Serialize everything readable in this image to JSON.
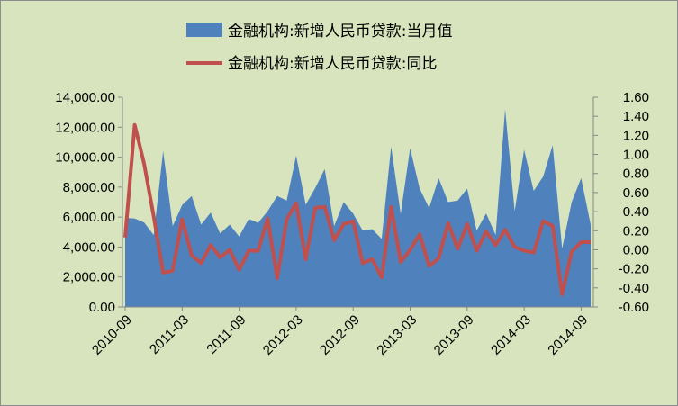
{
  "chart_data": {
    "type": "area",
    "x": [
      "2010-09",
      "2010-10",
      "2010-11",
      "2010-12",
      "2011-01",
      "2011-02",
      "2011-03",
      "2011-04",
      "2011-05",
      "2011-06",
      "2011-07",
      "2011-08",
      "2011-09",
      "2011-10",
      "2011-11",
      "2011-12",
      "2012-01",
      "2012-02",
      "2012-03",
      "2012-04",
      "2012-05",
      "2012-06",
      "2012-07",
      "2012-08",
      "2012-09",
      "2012-10",
      "2012-11",
      "2012-12",
      "2013-01",
      "2013-02",
      "2013-03",
      "2013-04",
      "2013-05",
      "2013-06",
      "2013-07",
      "2013-08",
      "2013-09",
      "2013-10",
      "2013-11",
      "2013-12",
      "2014-01",
      "2014-02",
      "2014-03",
      "2014-04",
      "2014-05",
      "2014-06",
      "2014-07",
      "2014-08",
      "2014-09",
      "2014-10"
    ],
    "x_tick_labels": [
      "2010-09",
      "2011-03",
      "2011-09",
      "2012-03",
      "2012-09",
      "2013-03",
      "2013-09",
      "2014-03",
      "2014-09"
    ],
    "series": [
      {
        "name": "金融机构:新增人民币贷款:当月值",
        "type": "area",
        "axis": "left",
        "color": "#4f81bd",
        "values": [
          5950,
          5900,
          5640,
          4800,
          10400,
          5400,
          6800,
          7400,
          5500,
          6300,
          4900,
          5500,
          4700,
          5870,
          5620,
          6400,
          7400,
          7100,
          10100,
          6820,
          7930,
          9200,
          5400,
          7000,
          6230,
          5100,
          5200,
          4540,
          10700,
          6200,
          10600,
          7900,
          6600,
          8600,
          7000,
          7100,
          7900,
          5100,
          6240,
          4800,
          13200,
          6400,
          10500,
          7750,
          8700,
          10800,
          3900,
          7000,
          8600,
          5500
        ]
      },
      {
        "name": "金融机构:新增人民币贷款:同比",
        "type": "line",
        "axis": "right",
        "color": "#c0504d",
        "values": [
          0.13,
          1.31,
          0.9,
          0.35,
          -0.24,
          -0.22,
          0.32,
          -0.06,
          -0.14,
          0.05,
          -0.08,
          0.0,
          -0.21,
          -0.01,
          -0.01,
          0.33,
          -0.3,
          0.32,
          0.49,
          -0.1,
          0.44,
          0.45,
          0.1,
          0.27,
          0.3,
          -0.14,
          -0.1,
          -0.29,
          0.45,
          -0.13,
          0.0,
          0.16,
          -0.17,
          -0.09,
          0.28,
          0.01,
          0.27,
          -0.01,
          0.19,
          0.05,
          0.21,
          0.03,
          -0.01,
          -0.03,
          0.3,
          0.25,
          -0.47,
          -0.02,
          0.08,
          0.08
        ]
      }
    ],
    "y_left": {
      "lim": [
        0,
        14000
      ],
      "ticks": [
        "0.00",
        "2,000.00",
        "4,000.00",
        "6,000.00",
        "8,000.00",
        "10,000.00",
        "12,000.00",
        "14,000.00"
      ]
    },
    "y_right": {
      "lim": [
        -0.6,
        1.6
      ],
      "ticks": [
        "-0.60",
        "-0.40",
        "-0.20",
        "0.00",
        "0.20",
        "0.40",
        "0.60",
        "0.80",
        "1.00",
        "1.20",
        "1.40",
        "1.60"
      ]
    },
    "legend_position": "top",
    "grid": false
  }
}
